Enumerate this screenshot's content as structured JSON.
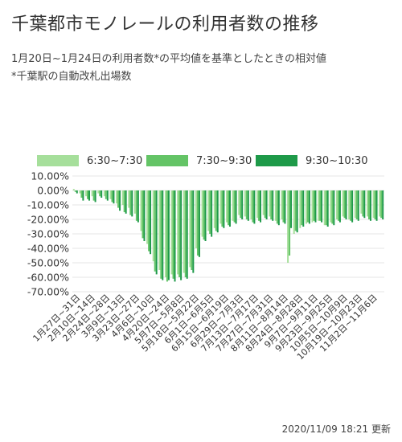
{
  "title": "千葉都市モノレールの利用者数の推移",
  "subtitle_lines": [
    "1月20日~1月24日の利用者数*の平均値を基準としたときの相対値",
    "*千葉駅の自動改札出場数"
  ],
  "updated": "2020/11/09 18:21 更新",
  "colors": {
    "s1": "#a6df9b",
    "s2": "#64c466",
    "s3": "#1e9a49",
    "grid": "#e4e4e4",
    "tick": "#333333"
  },
  "chart_data": {
    "type": "bar",
    "ylim": [
      -70,
      10
    ],
    "yticks": [
      10,
      0,
      -10,
      -20,
      -30,
      -40,
      -50,
      -60,
      -70
    ],
    "ytick_labels": [
      "10.00%",
      "0.00%",
      "-10.00%",
      "-20.00%",
      "-30.00%",
      "-40.00%",
      "-50.00%",
      "-60.00%",
      "-70.00%"
    ],
    "legend_position": "top",
    "xtick_labels": [
      "1月27日~31日",
      "2月10日~14日",
      "2月24日~28日",
      "3月9日~13日",
      "3月23日~27日",
      "4月6日~10日",
      "4月20日~24日",
      "5月7日~5月8日",
      "5月18日~5月22日",
      "6月1日~6月5日",
      "6月15日~6月19日",
      "6月29日~7月3日",
      "7月13日~7月17日",
      "7月27日~7月31日",
      "8月11日~8月14日",
      "8月24日~8月28日",
      "9月7日~9月11日",
      "9月23日~9月25日",
      "10月5日~10月9日",
      "10月19日~10月23日",
      "11月2日~11月6日"
    ],
    "series": [
      {
        "name": "6:30~7:30",
        "values": [
          1,
          -2,
          -4,
          -4,
          -2,
          -4,
          -6,
          -9,
          -10,
          -12,
          -16,
          -28,
          -37,
          -49,
          -55,
          -60,
          -58,
          -58,
          -57,
          -53,
          -40,
          -32,
          -28,
          -26,
          -23,
          -22,
          -21,
          -17,
          -18,
          -20,
          -19,
          -17,
          -18,
          -21,
          -20,
          -50,
          -30,
          -26,
          -23,
          -22,
          -21,
          -24,
          -22,
          -20,
          -18,
          -20,
          -19,
          -16,
          -18,
          -19,
          -18
        ]
      },
      {
        "name": "7:30~9:30",
        "values": [
          -1,
          -5,
          -6,
          -7,
          -4,
          -6,
          -8,
          -12,
          -15,
          -17,
          -21,
          -33,
          -42,
          -56,
          -61,
          -63,
          -61,
          -60,
          -60,
          -55,
          -45,
          -34,
          -30,
          -28,
          -25,
          -24,
          -22,
          -19,
          -20,
          -22,
          -21,
          -19,
          -20,
          -23,
          -22,
          -45,
          -28,
          -24,
          -22,
          -21,
          -21,
          -24,
          -23,
          -21,
          -19,
          -21,
          -20,
          -18,
          -20,
          -20,
          -19
        ]
      },
      {
        "name": "9:30~10:30",
        "values": [
          -2,
          -7,
          -7,
          -8,
          -5,
          -7,
          -9,
          -14,
          -16,
          -18,
          -22,
          -35,
          -44,
          -58,
          -62,
          -62,
          -63,
          -62,
          -61,
          -57,
          -46,
          -35,
          -32,
          -29,
          -26,
          -25,
          -23,
          -20,
          -21,
          -23,
          -22,
          -20,
          -21,
          -24,
          -23,
          -26,
          -29,
          -25,
          -23,
          -22,
          -22,
          -25,
          -24,
          -22,
          -20,
          -22,
          -21,
          -19,
          -21,
          -21,
          -20
        ]
      }
    ]
  }
}
